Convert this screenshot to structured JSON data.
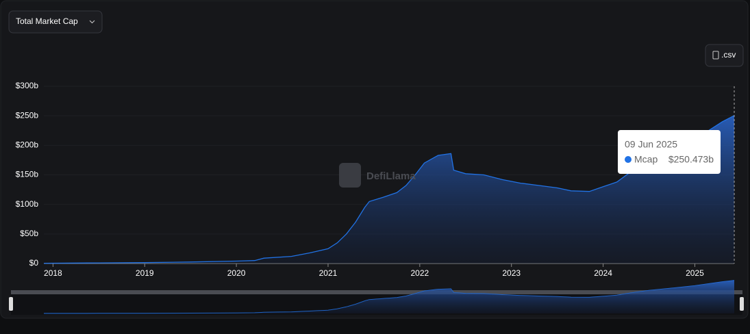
{
  "ui": {
    "dropdown": "Total Market Cap",
    "csv_button": ".csv",
    "watermark": "DefiLlama"
  },
  "chart_data": {
    "type": "area",
    "x": [
      2017.9,
      2018.5,
      2019.0,
      2019.5,
      2020.0,
      2020.2,
      2020.3,
      2020.6,
      2020.8,
      2021.0,
      2021.1,
      2021.2,
      2021.3,
      2021.4,
      2021.45,
      2021.6,
      2021.75,
      2021.85,
      2021.95,
      2022.05,
      2022.2,
      2022.34,
      2022.37,
      2022.5,
      2022.7,
      2022.9,
      2023.1,
      2023.3,
      2023.5,
      2023.65,
      2023.85,
      2024.0,
      2024.15,
      2024.3,
      2024.5,
      2024.8,
      2025.0,
      2025.15,
      2025.3,
      2025.43
    ],
    "series": [
      {
        "name": "Mcap",
        "color": "#2172e5",
        "values": [
          0.5,
          1,
          1.5,
          2.5,
          4,
          5,
          9,
          12,
          18,
          25,
          35,
          50,
          70,
          95,
          105,
          112,
          120,
          132,
          150,
          170,
          183,
          186,
          158,
          152,
          150,
          142,
          136,
          132,
          128,
          123,
          122,
          130,
          138,
          155,
          175,
          195,
          210,
          225,
          240,
          250.473
        ]
      }
    ],
    "xlim": [
      2017.9,
      2025.43
    ],
    "xticks": [
      2018,
      2019,
      2020,
      2021,
      2022,
      2023,
      2024,
      2025
    ],
    "ylim": [
      0,
      300
    ],
    "yticks": [
      {
        "value": 0,
        "label": "$0"
      },
      {
        "value": 50,
        "label": "$50b"
      },
      {
        "value": 100,
        "label": "$100b"
      },
      {
        "value": 150,
        "label": "$150b"
      },
      {
        "value": 200,
        "label": "$200b"
      },
      {
        "value": 250,
        "label": "$250b"
      },
      {
        "value": 300,
        "label": "$300b"
      }
    ],
    "grid": true,
    "tooltip": {
      "date": "09 Jun 2025",
      "series": "Mcap",
      "value": 250.473,
      "label": "$250.473b"
    }
  }
}
